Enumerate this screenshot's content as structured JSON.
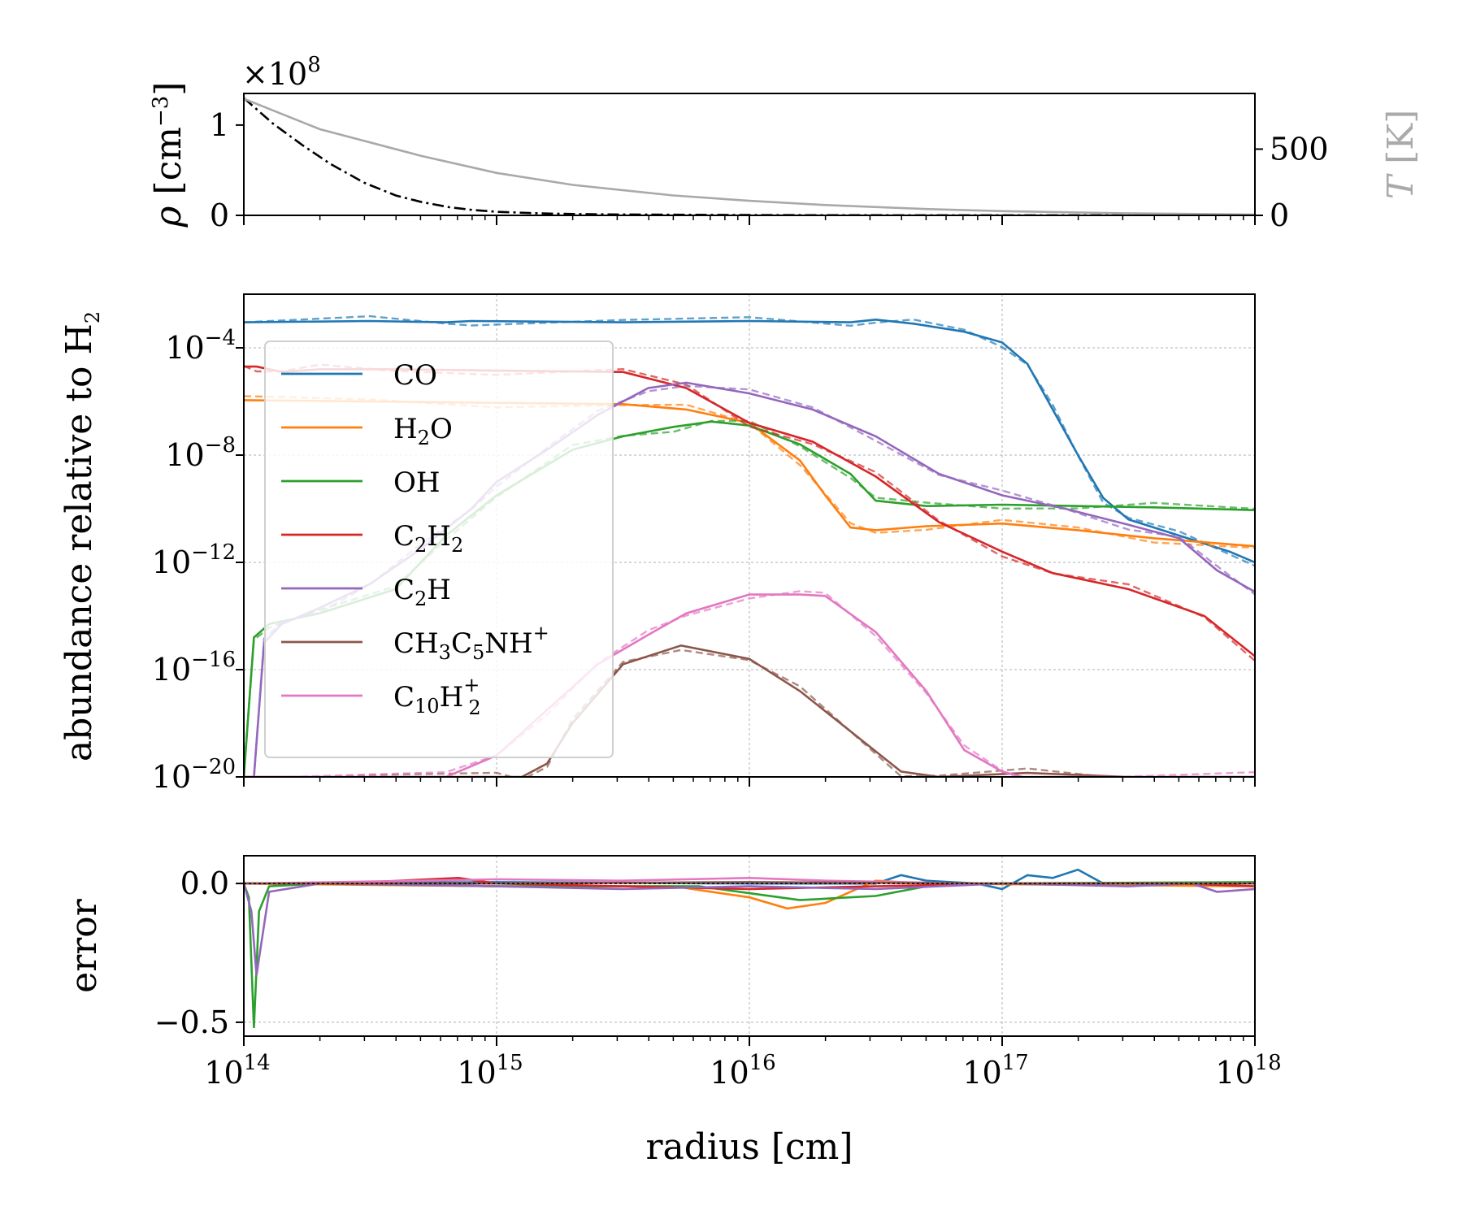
{
  "chart_data": {
    "type": "line",
    "xlabel": "radius [cm]",
    "xscale": "log",
    "xlim": [
      100000000000000.0,
      1e+18
    ],
    "x_ticks": [
      {
        "base": "10",
        "exp": "14"
      },
      {
        "base": "10",
        "exp": "15"
      },
      {
        "base": "10",
        "exp": "16"
      },
      {
        "base": "10",
        "exp": "17"
      },
      {
        "base": "10",
        "exp": "18"
      }
    ],
    "top_panel": {
      "ylabel_left": "ρ [cm⁻³]",
      "ylabel_left_parts": {
        "sym": "ρ",
        "open": "[cm",
        "sup": "−3",
        "close": "]"
      },
      "ylabel_right": "T [K]",
      "ylabel_right_parts": {
        "sym": "T",
        "unit": "[K]"
      },
      "offset_text": "×10⁸",
      "offset_parts": {
        "pre": "×10",
        "sup": "8"
      },
      "left_ticks": [
        "0",
        "1"
      ],
      "right_ticks": [
        "0",
        "500"
      ],
      "ylim_left": [
        0,
        1.35
      ],
      "ylim_right": [
        0,
        920
      ],
      "series": [
        {
          "name": "density",
          "axis": "left",
          "style": "dashdot",
          "color": "#000000",
          "x": [
            100000000000000.0,
            130000000000000.0,
            170000000000000.0,
            220000000000000.0,
            300000000000000.0,
            400000000000000.0,
            500000000000000.0,
            650000000000000.0,
            800000000000000.0,
            1000000000000000.0,
            1500000000000000.0,
            2000000000000000.0,
            3000000000000000.0,
            5000000000000000.0,
            1e+16,
            2e+16,
            5e+16,
            1e+17,
            3e+17,
            1e+18
          ],
          "y": [
            1.3,
            1.02,
            0.78,
            0.57,
            0.36,
            0.22,
            0.15,
            0.09,
            0.06,
            0.04,
            0.022,
            0.015,
            0.01,
            0.007,
            0.004,
            0.002,
            0.001,
            0.0005,
            0.0002,
            0.0001
          ]
        },
        {
          "name": "temperature",
          "axis": "right",
          "style": "solid",
          "color": "#a9a9a9",
          "x": [
            100000000000000.0,
            200000000000000.0,
            500000000000000.0,
            1000000000000000.0,
            2000000000000000.0,
            5000000000000000.0,
            1e+16,
            2e+16,
            5e+16,
            1e+17,
            3e+17,
            1e+18
          ],
          "y": [
            880,
            650,
            450,
            320,
            230,
            150,
            110,
            78,
            48,
            32,
            16,
            6
          ]
        }
      ]
    },
    "middle_panel": {
      "ylabel": "abundance relative to H",
      "ylabel_sub": "2",
      "yscale": "log",
      "ylim_exp": [
        -20,
        -2
      ],
      "y_ticks": [
        {
          "base": "10",
          "exp": "−20",
          "e": -20
        },
        {
          "base": "10",
          "exp": "−16",
          "e": -16
        },
        {
          "base": "10",
          "exp": "−12",
          "e": -12
        },
        {
          "base": "10",
          "exp": "−8",
          "e": -8
        },
        {
          "base": "10",
          "exp": "−4",
          "e": -4
        }
      ],
      "legend_position": "upper-left",
      "series": [
        {
          "name": "CO",
          "parts": [
            {
              "t": "CO"
            }
          ],
          "color": "#1f77b4",
          "log_r": [
            14,
            14.5,
            14.8,
            14.9,
            15.5,
            16,
            16.4,
            16.5,
            16.65,
            16.85,
            17,
            17.1,
            17.2,
            17.3,
            17.4,
            17.5,
            17.7,
            17.9,
            18
          ],
          "log_abund": [
            -3.05,
            -3.0,
            -3.05,
            -3.0,
            -3.05,
            -3.0,
            -3.05,
            -2.95,
            -3.1,
            -3.4,
            -3.8,
            -4.6,
            -6.3,
            -8.0,
            -9.6,
            -10.4,
            -11.0,
            -11.6,
            -12.0
          ]
        },
        {
          "name": "H2O",
          "parts": [
            {
              "t": "H"
            },
            {
              "t": "2",
              "sub": true
            },
            {
              "t": "O"
            }
          ],
          "color": "#ff7f0e",
          "log_r": [
            14,
            14.5,
            15,
            15.5,
            15.75,
            16,
            16.2,
            16.3,
            16.4,
            16.5,
            16.7,
            17,
            17.3,
            17.6,
            18
          ],
          "log_abund": [
            -5.95,
            -6.0,
            -6.05,
            -6.1,
            -6.3,
            -6.8,
            -8.2,
            -9.5,
            -10.7,
            -10.8,
            -10.65,
            -10.55,
            -10.8,
            -11.1,
            -11.4
          ]
        },
        {
          "name": "OH",
          "parts": [
            {
              "t": "OH"
            }
          ],
          "color": "#2ca02c",
          "log_r": [
            14,
            14.04,
            14.1,
            14.3,
            14.6,
            14.8,
            15,
            15.3,
            15.5,
            15.7,
            15.85,
            16,
            16.2,
            16.4,
            16.5,
            16.7,
            17,
            17.3,
            17.6,
            18
          ],
          "log_abund": [
            -20,
            -14.8,
            -14.3,
            -13.9,
            -13.0,
            -11.0,
            -9.5,
            -7.8,
            -7.3,
            -6.95,
            -6.75,
            -6.9,
            -7.6,
            -8.7,
            -9.7,
            -9.9,
            -9.85,
            -9.9,
            -9.95,
            -10.05
          ]
        },
        {
          "name": "C2H2",
          "parts": [
            {
              "t": "C"
            },
            {
              "t": "2",
              "sub": true
            },
            {
              "t": "H"
            },
            {
              "t": "2",
              "sub": true
            }
          ],
          "color": "#d62728",
          "log_r": [
            14,
            14.05,
            14.15,
            14.3,
            14.6,
            15.0,
            15.5,
            15.75,
            16,
            16.25,
            16.5,
            16.75,
            17,
            17.2,
            17.5,
            17.8,
            18
          ],
          "log_abund": [
            -4.7,
            -4.7,
            -4.9,
            -4.8,
            -4.8,
            -4.85,
            -4.9,
            -5.5,
            -6.8,
            -7.5,
            -8.8,
            -10.5,
            -11.6,
            -12.4,
            -13.0,
            -14.0,
            -15.5
          ]
        },
        {
          "name": "C2H",
          "parts": [
            {
              "t": "C"
            },
            {
              "t": "2",
              "sub": true
            },
            {
              "t": "H"
            }
          ],
          "color": "#9467bd",
          "log_r": [
            14,
            14.04,
            14.08,
            14.15,
            14.3,
            14.5,
            14.7,
            14.9,
            15.0,
            15.2,
            15.4,
            15.6,
            15.75,
            16,
            16.25,
            16.5,
            16.75,
            17,
            17.25,
            17.5,
            17.7,
            17.85,
            18
          ],
          "log_abund": [
            -20,
            -20,
            -15.0,
            -14.3,
            -13.7,
            -12.8,
            -11.5,
            -10.0,
            -9.0,
            -7.8,
            -6.5,
            -5.5,
            -5.3,
            -5.7,
            -6.3,
            -7.3,
            -8.7,
            -9.5,
            -10.0,
            -10.6,
            -11.1,
            -12.3,
            -13.1
          ]
        },
        {
          "name": "CH3C5NH+",
          "parts": [
            {
              "t": "CH"
            },
            {
              "t": "3",
              "sub": true
            },
            {
              "t": "C"
            },
            {
              "t": "5",
              "sub": true
            },
            {
              "t": "NH"
            },
            {
              "t": "+",
              "sup": true
            }
          ],
          "color": "#8c564b",
          "log_r": [
            14,
            14.5,
            15,
            15.1,
            15.2,
            15.3,
            15.5,
            15.73,
            16,
            16.2,
            16.4,
            16.6,
            16.75,
            17.1,
            17.5,
            18
          ],
          "log_abund": [
            -20,
            -20,
            -20,
            -20,
            -19.5,
            -18.0,
            -15.8,
            -15.1,
            -15.6,
            -16.8,
            -18.3,
            -19.8,
            -20,
            -19.85,
            -20,
            -20
          ]
        },
        {
          "name": "C10H2+",
          "parts": [
            {
              "t": "C"
            },
            {
              "t": "10",
              "sub": true
            },
            {
              "t": "H"
            },
            {
              "t": "+2",
              "subsup": true
            }
          ],
          "color": "#e377c2",
          "log_r": [
            14,
            14.8,
            15,
            15.2,
            15.4,
            15.6,
            15.75,
            16,
            16.2,
            16.3,
            16.5,
            16.7,
            16.85,
            17,
            17.08,
            17.5,
            18
          ],
          "log_abund": [
            -20,
            -20,
            -19.2,
            -17.5,
            -15.8,
            -14.7,
            -13.9,
            -13.2,
            -13.2,
            -13.25,
            -14.6,
            -16.8,
            -19.0,
            -19.8,
            -20,
            -20,
            -20
          ]
        }
      ]
    },
    "bottom_panel": {
      "ylabel": "error",
      "ylim": [
        -0.55,
        0.1
      ],
      "y_ticks": [
        {
          "label": "0.0",
          "v": 0.0
        },
        {
          "label": "−0.5",
          "v": -0.5
        }
      ],
      "series": [
        {
          "name": "CO",
          "color": "#1f77b4",
          "log_r": [
            14,
            15,
            16,
            16.5,
            16.6,
            16.7,
            16.9,
            17.0,
            17.1,
            17.2,
            17.3,
            17.4,
            17.6,
            18
          ],
          "err": [
            0,
            0.005,
            0,
            0.0,
            0.03,
            0.01,
            0,
            -0.02,
            0.03,
            0.02,
            0.05,
            0.0,
            0,
            0
          ]
        },
        {
          "name": "H2O",
          "color": "#ff7f0e",
          "log_r": [
            14,
            15,
            15.7,
            16,
            16.15,
            16.3,
            16.45,
            16.5,
            16.7,
            18
          ],
          "err": [
            0,
            -0.01,
            -0.01,
            -0.05,
            -0.09,
            -0.07,
            -0.01,
            0.01,
            0,
            -0.01
          ]
        },
        {
          "name": "OH",
          "color": "#2ca02c",
          "log_r": [
            14,
            14.02,
            14.04,
            14.06,
            14.1,
            14.3,
            15,
            15.8,
            16.2,
            16.5,
            16.7,
            16.9,
            18
          ],
          "err": [
            0,
            -0.05,
            -0.52,
            -0.1,
            -0.01,
            0,
            -0.01,
            -0.01,
            -0.06,
            -0.045,
            -0.01,
            0,
            0.005
          ]
        },
        {
          "name": "C2H2",
          "color": "#d62728",
          "log_r": [
            14,
            14.5,
            14.85,
            15,
            15.5,
            16,
            16.5,
            17,
            17.7,
            18
          ],
          "err": [
            0,
            0.005,
            0.02,
            0,
            -0.01,
            -0.02,
            -0.01,
            0,
            0,
            -0.01
          ]
        },
        {
          "name": "C2H",
          "color": "#9467bd",
          "log_r": [
            14,
            14.03,
            14.05,
            14.1,
            14.3,
            15,
            15.5,
            16,
            16.5,
            17,
            17.5,
            17.75,
            17.85,
            18
          ],
          "err": [
            0,
            -0.1,
            -0.33,
            -0.03,
            0,
            -0.01,
            -0.02,
            -0.01,
            -0.02,
            0,
            -0.01,
            0,
            -0.03,
            -0.02
          ]
        },
        {
          "name": "C10H2+",
          "color": "#e377c2",
          "log_r": [
            14,
            14.7,
            15,
            15.5,
            16,
            16.3,
            16.6,
            16.85,
            18
          ],
          "err": [
            0,
            0.01,
            0.015,
            0.01,
            0.02,
            0.01,
            0.005,
            0,
            0
          ]
        },
        {
          "name": "CH3C5NH+",
          "color": "#8c564b",
          "log_r": [
            14,
            15,
            16,
            17,
            18
          ],
          "err": [
            0,
            0,
            0.005,
            0,
            0
          ]
        }
      ]
    }
  }
}
